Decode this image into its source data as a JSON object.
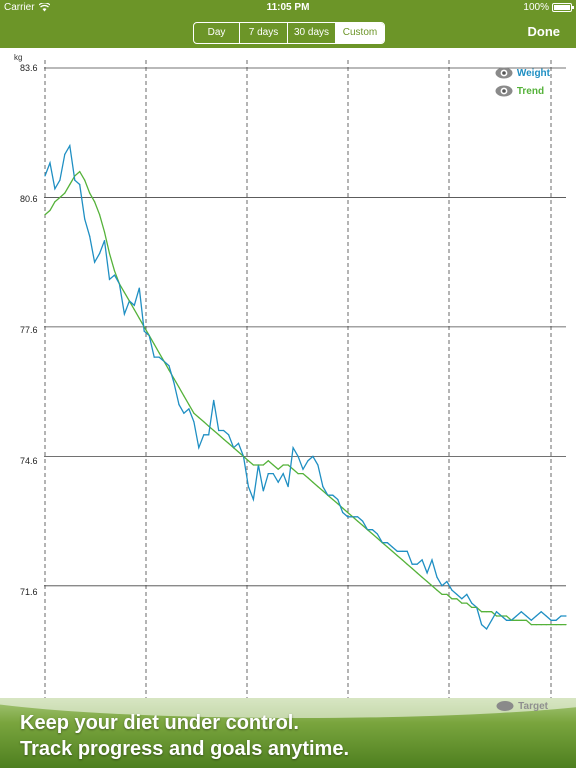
{
  "status": {
    "carrier": "Carrier",
    "time": "11:05 PM",
    "battery": "100%"
  },
  "nav": {
    "segments": [
      "Day",
      "7 days",
      "30 days",
      "Custom"
    ],
    "selected_segment": "Custom",
    "done_label": "Done"
  },
  "legend": {
    "weight": "Weight",
    "trend": "Trend",
    "target": "Target"
  },
  "banner": {
    "line1": "Keep your diet under control.",
    "line2": "Track progress and goals anytime."
  },
  "colors": {
    "bar_green": "#6c9528",
    "weight_line": "#1f8fc3",
    "trend_line": "#55b23a",
    "gridline": "#444444"
  },
  "chart_data": {
    "type": "line",
    "ylabel": "kg",
    "ylim": [
      69.0,
      83.6
    ],
    "y_ticks": [
      "83.6",
      "80.6",
      "77.6",
      "74.6",
      "71.6"
    ],
    "grid": true,
    "legend_position": "top-right",
    "x": [
      0,
      1,
      2,
      3,
      4,
      5,
      6,
      7,
      8,
      9,
      10,
      11,
      12,
      13,
      14,
      15,
      16,
      17,
      18,
      19,
      20,
      21,
      22,
      23,
      24,
      25,
      26,
      27,
      28,
      29,
      30,
      31,
      32,
      33,
      34,
      35,
      36,
      37,
      38,
      39,
      40,
      41,
      42,
      43,
      44,
      45,
      46,
      47,
      48,
      49,
      50,
      51,
      52,
      53,
      54,
      55,
      56,
      57,
      58,
      59,
      60,
      61,
      62,
      63,
      64,
      65,
      66,
      67,
      68,
      69,
      70,
      71,
      72,
      73,
      74,
      75,
      76,
      77,
      78,
      79,
      80,
      81,
      82,
      83,
      84,
      85,
      86,
      87,
      88,
      89,
      90,
      91,
      92,
      93,
      94,
      95,
      96,
      97,
      98,
      99,
      100,
      101,
      102,
      103,
      104,
      105
    ],
    "series": [
      {
        "name": "Weight",
        "values": [
          81.1,
          81.4,
          80.8,
          81.0,
          81.6,
          81.8,
          81.0,
          80.9,
          80.1,
          79.7,
          79.1,
          79.3,
          79.6,
          78.7,
          78.8,
          78.6,
          77.9,
          78.2,
          78.1,
          78.5,
          77.5,
          77.4,
          76.9,
          76.9,
          76.8,
          76.7,
          76.3,
          75.8,
          75.6,
          75.7,
          75.4,
          74.8,
          75.1,
          75.1,
          75.9,
          75.2,
          75.2,
          75.1,
          74.8,
          74.9,
          74.6,
          73.9,
          73.6,
          74.4,
          73.8,
          74.2,
          74.2,
          74.0,
          74.2,
          73.9,
          74.8,
          74.6,
          74.3,
          74.5,
          74.6,
          74.4,
          73.9,
          73.7,
          73.7,
          73.6,
          73.3,
          73.2,
          73.2,
          73.2,
          73.1,
          72.9,
          72.9,
          72.8,
          72.6,
          72.6,
          72.5,
          72.4,
          72.4,
          72.4,
          72.1,
          72.1,
          72.2,
          71.9,
          72.2,
          71.8,
          71.6,
          71.7,
          71.5,
          71.4,
          71.3,
          71.4,
          71.2,
          71.1,
          70.7,
          70.6,
          70.8,
          71.0,
          70.9,
          70.8,
          70.8,
          70.9,
          71.0,
          70.9,
          70.8,
          70.9,
          71.0,
          70.9,
          70.8,
          70.8,
          70.9,
          70.9
        ],
        "color": "#1f8fc3"
      },
      {
        "name": "Trend",
        "values": [
          80.2,
          80.3,
          80.5,
          80.6,
          80.7,
          80.9,
          81.1,
          81.2,
          81.0,
          80.7,
          80.5,
          80.2,
          79.8,
          79.3,
          78.9,
          78.6,
          78.4,
          78.2,
          78.0,
          77.8,
          77.6,
          77.4,
          77.2,
          77.0,
          76.8,
          76.6,
          76.4,
          76.2,
          76.0,
          75.8,
          75.6,
          75.5,
          75.4,
          75.3,
          75.2,
          75.1,
          75.0,
          74.9,
          74.8,
          74.7,
          74.6,
          74.5,
          74.4,
          74.4,
          74.4,
          74.5,
          74.4,
          74.3,
          74.4,
          74.4,
          74.3,
          74.2,
          74.2,
          74.1,
          74.0,
          73.9,
          73.8,
          73.7,
          73.6,
          73.5,
          73.4,
          73.3,
          73.2,
          73.1,
          73.0,
          72.9,
          72.8,
          72.7,
          72.6,
          72.5,
          72.4,
          72.3,
          72.2,
          72.1,
          72.0,
          71.9,
          71.8,
          71.7,
          71.6,
          71.5,
          71.4,
          71.4,
          71.3,
          71.3,
          71.2,
          71.2,
          71.1,
          71.1,
          71.0,
          71.0,
          71.0,
          70.9,
          70.9,
          70.9,
          70.8,
          70.8,
          70.8,
          70.8,
          70.7,
          70.7,
          70.7,
          70.7,
          70.7,
          70.7,
          70.7,
          70.7
        ],
        "color": "#55b23a"
      }
    ]
  }
}
